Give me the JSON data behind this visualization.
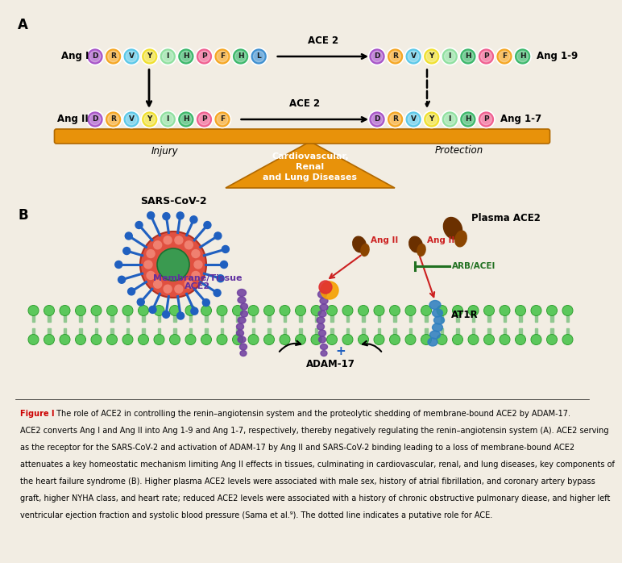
{
  "bg_color": "#f2ede3",
  "panel_a_label": "A",
  "panel_b_label": "B",
  "ang1_label": "Ang I",
  "ang2_label": "Ang II",
  "ang19_label": "Ang 1-9",
  "ang17_label": "Ang 1-7",
  "ace2_label": "ACE 2",
  "injury_label": "Injury",
  "protection_label": "Protection",
  "cvd_line1": "Cardiovascular,",
  "cvd_line2": "Renal",
  "cvd_line3": "and Lung Diseases",
  "sars_label": "SARS-CoV-2",
  "mem_line1": "Membrane/Tissue",
  "mem_line2": "ACE2",
  "plasma_label": "Plasma ACE2",
  "angII_label1": "Ang II",
  "angII_label2": "Ang II",
  "arb_label": "ARB/ACEI",
  "at1r_label": "AT1R",
  "adam_label": "ADAM-17",
  "fig_bold": "Figure I",
  "fig_text": " The role of ACE2 in controlling the renin–angiotensin system and the proteolytic shedding of membrane-bound ACE2 by ADAM-17.\nACE2 converts Ang I and Ang II into Ang 1-9 and Ang 1-7, respectively, thereby negatively regulating the renin–angiotensin system (A). ACE2 serving\nas the receptor for the SARS-CoV-2 and activation of ADAM-17 by Ang II and SARS-CoV-2 binding leading to a loss of membrane-bound ACE2\nattenuates a key homeostatic mechanism limiting Ang II effects in tissues, culminating in cardiovascular, renal, and lung diseases, key components of\nthe heart failure syndrome (B). Higher plasma ACE2 levels were associated with male sex, history of atrial fibrillation, and coronary artery bypass\ngraft, higher NYHA class, and heart rate; reduced ACE2 levels were associated with a history of chronic obstructive pulmonary diease, and higher left\nventricular ejection fraction and systolic blood pressure (Sama et al.⁹). The dotted line indicates a putative role for ACE.",
  "ang1_beads": [
    "D",
    "R",
    "V",
    "Y",
    "I",
    "H",
    "P",
    "F",
    "H",
    "L"
  ],
  "ang1_colors": [
    "#a855c8",
    "#f5a623",
    "#5bc8e8",
    "#f0e030",
    "#90e0a0",
    "#3db86b",
    "#f06090",
    "#f5a623",
    "#3db86b",
    "#4090d0"
  ],
  "ang19_beads": [
    "D",
    "R",
    "V",
    "Y",
    "I",
    "H",
    "P",
    "F",
    "H"
  ],
  "ang19_colors": [
    "#a855c8",
    "#f5a623",
    "#5bc8e8",
    "#f0e030",
    "#90e0a0",
    "#3db86b",
    "#f06090",
    "#f5a623",
    "#3db86b"
  ],
  "ang2_beads": [
    "D",
    "R",
    "V",
    "Y",
    "I",
    "H",
    "P",
    "F"
  ],
  "ang2_colors": [
    "#a855c8",
    "#f5a623",
    "#5bc8e8",
    "#f0e030",
    "#90e0a0",
    "#3db86b",
    "#f06090",
    "#f5a623"
  ],
  "ang17_beads": [
    "D",
    "R",
    "V",
    "Y",
    "I",
    "H",
    "P"
  ],
  "ang17_colors": [
    "#a855c8",
    "#f5a623",
    "#5bc8e8",
    "#f0e030",
    "#90e0a0",
    "#3db86b",
    "#f06090"
  ],
  "triangle_color": "#e8920a",
  "bar_color": "#e8920a",
  "virus_body_color": "#e05040",
  "virus_core_color": "#3a9a50",
  "virus_spike_color": "#2060c0",
  "membrane_head_color": "#5cc85c",
  "membrane_tail_color": "#90c890",
  "ace2_protein_color": "#7040a0",
  "at1r_color": "#3080c0",
  "adam_sparkle1": "#f5a000",
  "adam_sparkle2": "#e03030",
  "plasma_ace2_color": "#6b3000",
  "angII_color": "#cc2020",
  "arb_color": "#207020"
}
